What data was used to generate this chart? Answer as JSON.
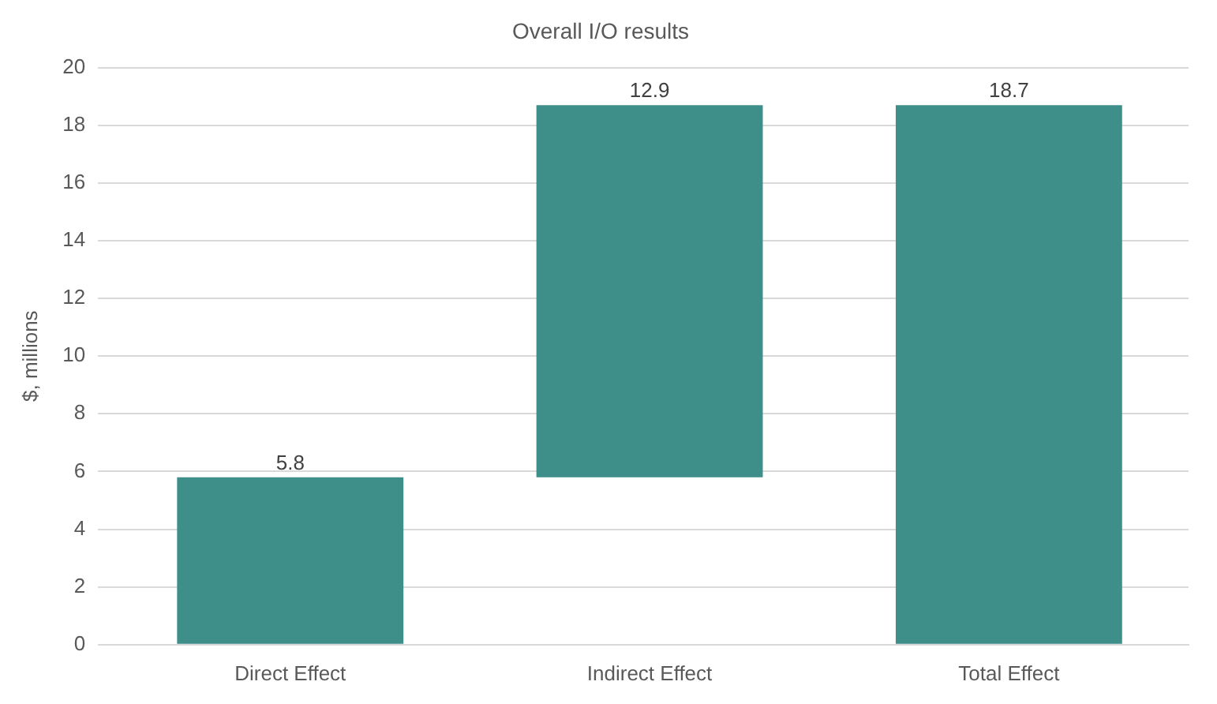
{
  "chart_data": {
    "type": "bar",
    "title": "Overall I/O results",
    "ylabel": "$, millions",
    "categories": [
      "Direct Effect",
      "Indirect Effect",
      "Total Effect"
    ],
    "values": [
      5.8,
      12.9,
      18.7
    ],
    "base": [
      0,
      5.8,
      0
    ],
    "color": "#3e8e8a",
    "ylim": [
      0,
      20
    ],
    "yticks": [
      0,
      2,
      4,
      6,
      8,
      10,
      12,
      14,
      16,
      18,
      20
    ],
    "grid": "y",
    "legend": false,
    "data_labels": true
  }
}
